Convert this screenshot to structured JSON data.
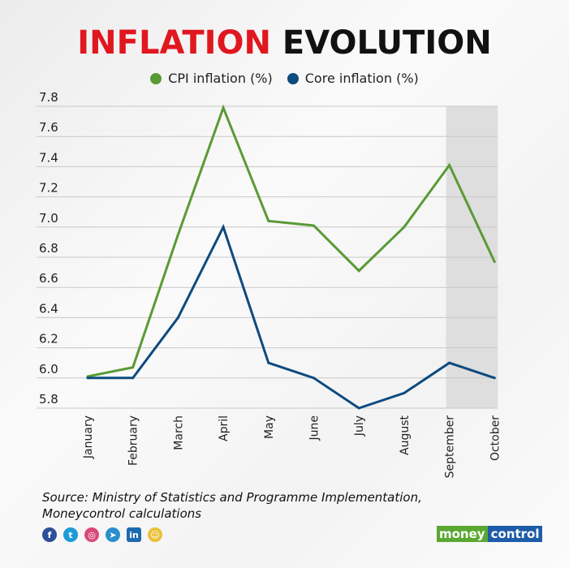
{
  "title": {
    "part1": "INFLATION",
    "part2": "EVOLUTION",
    "part1_color": "#e0171f",
    "part2_color": "#111111"
  },
  "chart_data": {
    "type": "line",
    "categories": [
      "January",
      "February",
      "March",
      "April",
      "May",
      "June",
      "July",
      "August",
      "September",
      "October"
    ],
    "series": [
      {
        "name": "CPI inflation (%)",
        "color": "#5a9a35",
        "values": [
          6.01,
          6.07,
          6.95,
          7.79,
          7.04,
          7.01,
          6.71,
          7.0,
          7.41,
          6.77
        ]
      },
      {
        "name": "Core inflation (%)",
        "color": "#0d4a80",
        "values": [
          6.0,
          6.0,
          6.4,
          7.0,
          6.1,
          6.0,
          5.8,
          5.9,
          6.1,
          6.0
        ]
      }
    ],
    "ylim": [
      5.8,
      7.8
    ],
    "yticks": [
      "7.8",
      "7.6",
      "7.4",
      "7.2",
      "7.0",
      "6.8",
      "6.6",
      "6.4",
      "6.2",
      "6.0",
      "5.8"
    ],
    "highlight_range": [
      "September",
      "October"
    ],
    "grid": true,
    "legend": "top"
  },
  "source": {
    "line1": "Source: Ministry of Statistics and Programme Implementation,",
    "line2": "Moneycontrol calculations"
  },
  "social_icons": [
    "facebook-icon",
    "twitter-icon",
    "instagram-icon",
    "telegram-icon",
    "linkedin-icon",
    "snapchat-icon"
  ],
  "logo": {
    "part1": "money",
    "part2": "control"
  }
}
